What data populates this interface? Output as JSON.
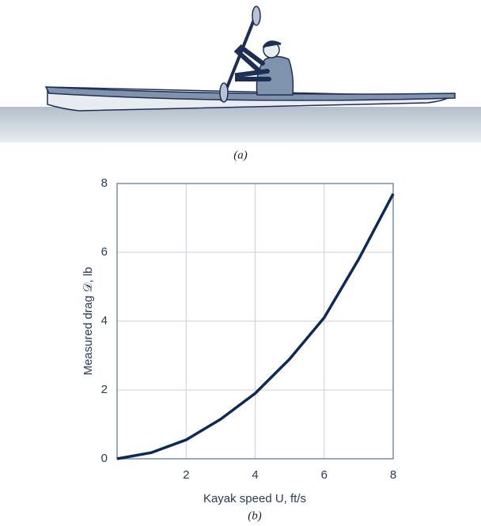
{
  "captions": [
    "(a)",
    "(b)"
  ],
  "chart_data": {
    "type": "line",
    "x_label": "Kayak speed U, ft/s",
    "y_label": "Measured drag 𝒟, lb",
    "x": [
      0,
      1,
      2,
      3,
      4,
      5,
      6,
      7,
      8
    ],
    "series": [
      {
        "color": "#0b2a5a",
        "values": [
          0,
          0.18,
          0.55,
          1.15,
          1.9,
          2.9,
          4.1,
          5.8,
          7.7
        ]
      }
    ],
    "xlim": [
      0,
      8
    ],
    "ylim": [
      0,
      8
    ],
    "xticks": [
      2,
      4,
      6,
      8
    ],
    "yticks": [
      0,
      2,
      4,
      6,
      8
    ],
    "grid": true
  }
}
